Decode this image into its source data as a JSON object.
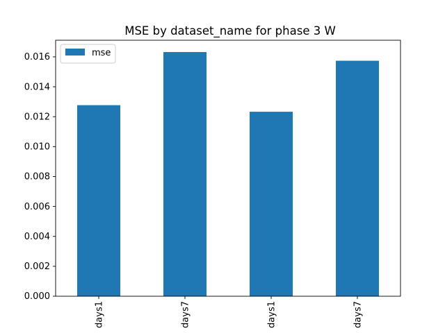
{
  "chart_data": {
    "type": "bar",
    "title": "MSE by dataset_name for phase 3 W",
    "xlabel": "",
    "ylabel": "",
    "categories": [
      "days1",
      "days7",
      "days1",
      "days7"
    ],
    "series": [
      {
        "name": "mse",
        "values": [
          0.01277,
          0.01632,
          0.01233,
          0.01574
        ]
      }
    ],
    "ylim": [
      0.0,
      0.01711
    ],
    "yticks": [
      0.0,
      0.002,
      0.004,
      0.006,
      0.008,
      0.01,
      0.012,
      0.014,
      0.016
    ],
    "ytick_labels": [
      "0.000",
      "0.002",
      "0.004",
      "0.006",
      "0.008",
      "0.010",
      "0.012",
      "0.014",
      "0.016"
    ],
    "grid": false,
    "legend": "top-left",
    "colors": {
      "bar": "#1f77b4",
      "axes": "#000000",
      "background": "#ffffff"
    }
  }
}
